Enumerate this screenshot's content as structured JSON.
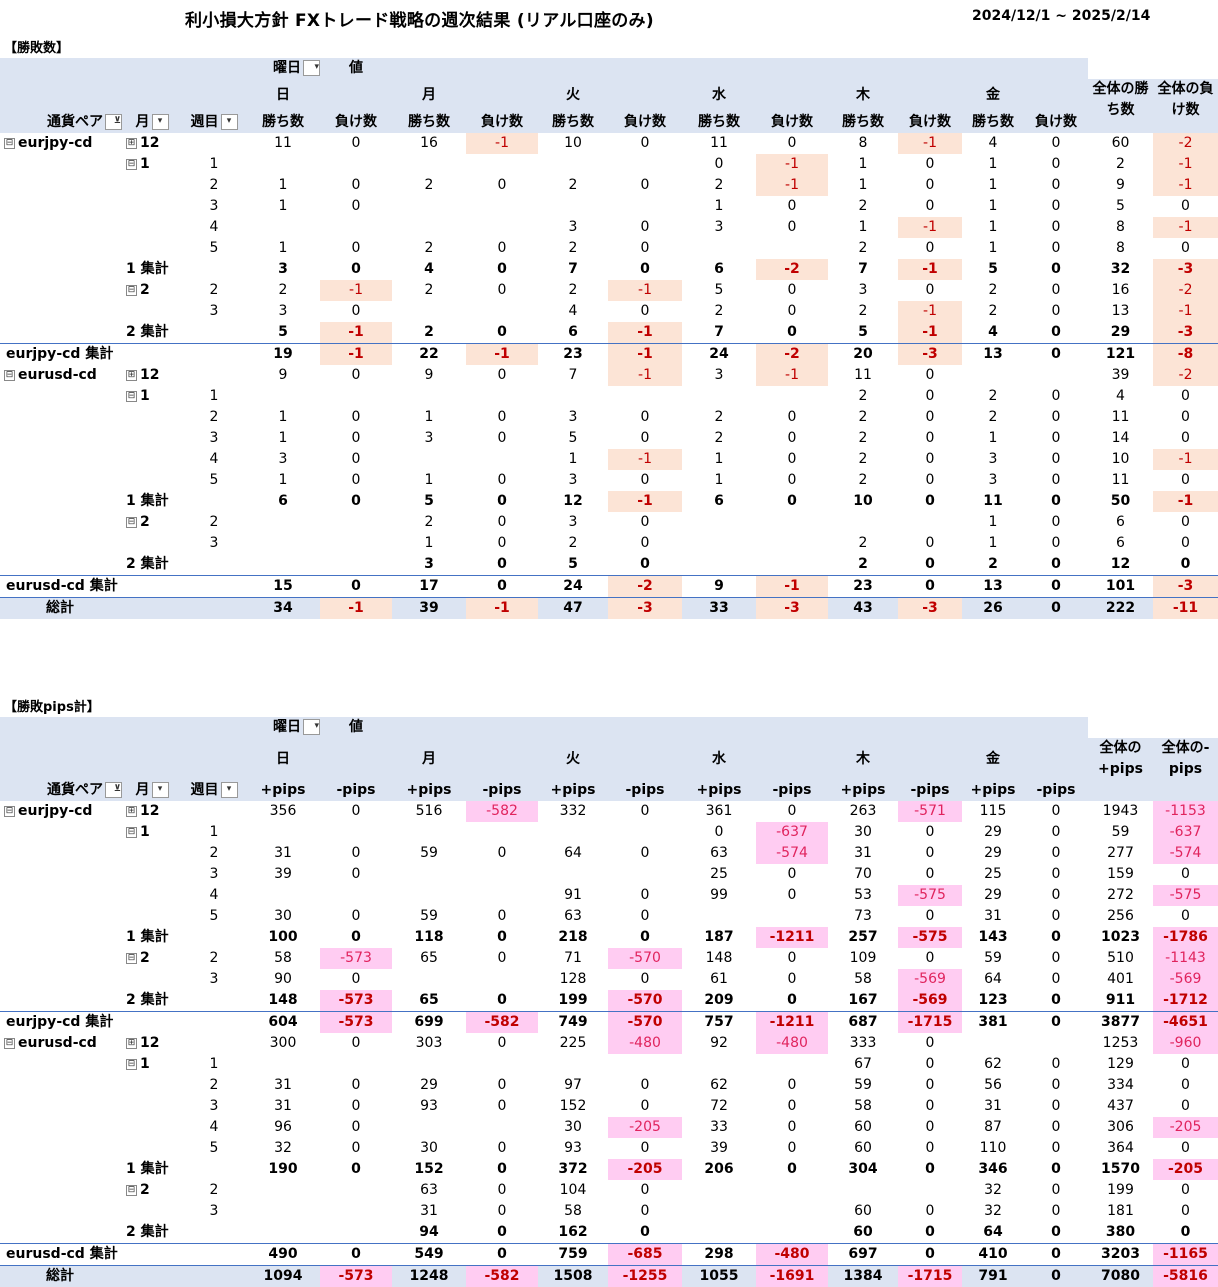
{
  "title": "利小損大方針 FXトレード戦略の週次結果 (リアル口座のみ)",
  "date_range": "2024/12/1 ~ 2025/2/14",
  "pivot_headers": {
    "weekday_field": "曜日",
    "value_label": "値",
    "currency_field": "通貨ペア",
    "month_field": "月",
    "week_field": "週目",
    "days": [
      "日",
      "月",
      "火",
      "水",
      "木",
      "金"
    ]
  },
  "tables": [
    {
      "section_label": "【勝敗数】",
      "col_pos": "勝ち数",
      "col_neg": "負け数",
      "total_pos": "全体の勝ち数",
      "total_neg": "全体の負け数",
      "rows": [
        {
          "type": "data",
          "c0": "eurjpy-cd",
          "c1": "12",
          "e0": "⊟",
          "e1": "⊞",
          "c2": "",
          "v": [
            "11",
            "0",
            "16",
            "-1",
            "10",
            "0",
            "11",
            "0",
            "8",
            "-1",
            "4",
            "0",
            "60",
            "-2"
          ]
        },
        {
          "type": "data",
          "c0": "",
          "c1": "1",
          "e1": "⊟",
          "c2": "1",
          "v": [
            "",
            "",
            "",
            "",
            "",
            "",
            "0",
            "-1",
            "1",
            "0",
            "1",
            "0",
            "2",
            "-1"
          ]
        },
        {
          "type": "data",
          "c0": "",
          "c1": "",
          "c2": "2",
          "v": [
            "1",
            "0",
            "2",
            "0",
            "2",
            "0",
            "2",
            "-1",
            "1",
            "0",
            "1",
            "0",
            "9",
            "-1"
          ]
        },
        {
          "type": "data",
          "c0": "",
          "c1": "",
          "c2": "3",
          "v": [
            "1",
            "0",
            "",
            "",
            "",
            "",
            "1",
            "0",
            "2",
            "0",
            "1",
            "0",
            "5",
            "0"
          ]
        },
        {
          "type": "data",
          "c0": "",
          "c1": "",
          "c2": "4",
          "v": [
            "",
            "",
            "",
            "",
            "3",
            "0",
            "3",
            "0",
            "1",
            "-1",
            "1",
            "0",
            "8",
            "-1"
          ]
        },
        {
          "type": "data",
          "c0": "",
          "c1": "",
          "c2": "5",
          "v": [
            "1",
            "0",
            "2",
            "0",
            "2",
            "0",
            "",
            "",
            "2",
            "0",
            "1",
            "0",
            "8",
            "0"
          ]
        },
        {
          "type": "sub",
          "c1": "1 集計",
          "v": [
            "3",
            "0",
            "4",
            "0",
            "7",
            "0",
            "6",
            "-2",
            "7",
            "-1",
            "5",
            "0",
            "32",
            "-3"
          ]
        },
        {
          "type": "data",
          "c0": "",
          "c1": "2",
          "e1": "⊟",
          "c2": "2",
          "v": [
            "2",
            "-1",
            "2",
            "0",
            "2",
            "-1",
            "5",
            "0",
            "3",
            "0",
            "2",
            "0",
            "16",
            "-2"
          ]
        },
        {
          "type": "data",
          "c0": "",
          "c1": "",
          "c2": "3",
          "v": [
            "3",
            "0",
            "",
            "",
            "4",
            "0",
            "2",
            "0",
            "2",
            "-1",
            "2",
            "0",
            "13",
            "-1"
          ]
        },
        {
          "type": "sub",
          "c1": "2 集計",
          "v": [
            "5",
            "-1",
            "2",
            "0",
            "6",
            "-1",
            "7",
            "0",
            "5",
            "-1",
            "4",
            "0",
            "29",
            "-3"
          ]
        },
        {
          "type": "tot",
          "c0": "eurjpy-cd 集計",
          "v": [
            "19",
            "-1",
            "22",
            "-1",
            "23",
            "-1",
            "24",
            "-2",
            "20",
            "-3",
            "13",
            "0",
            "121",
            "-8"
          ]
        },
        {
          "type": "data",
          "c0": "eurusd-cd",
          "c1": "12",
          "e0": "⊟",
          "e1": "⊞",
          "c2": "",
          "v": [
            "9",
            "0",
            "9",
            "0",
            "7",
            "-1",
            "3",
            "-1",
            "11",
            "0",
            "",
            "",
            "39",
            "-2"
          ]
        },
        {
          "type": "data",
          "c0": "",
          "c1": "1",
          "e1": "⊟",
          "c2": "1",
          "v": [
            "",
            "",
            "",
            "",
            "",
            "",
            "",
            "",
            "2",
            "0",
            "2",
            "0",
            "4",
            "0"
          ]
        },
        {
          "type": "data",
          "c0": "",
          "c1": "",
          "c2": "2",
          "v": [
            "1",
            "0",
            "1",
            "0",
            "3",
            "0",
            "2",
            "0",
            "2",
            "0",
            "2",
            "0",
            "11",
            "0"
          ]
        },
        {
          "type": "data",
          "c0": "",
          "c1": "",
          "c2": "3",
          "v": [
            "1",
            "0",
            "3",
            "0",
            "5",
            "0",
            "2",
            "0",
            "2",
            "0",
            "1",
            "0",
            "14",
            "0"
          ]
        },
        {
          "type": "data",
          "c0": "",
          "c1": "",
          "c2": "4",
          "v": [
            "3",
            "0",
            "",
            "",
            "1",
            "-1",
            "1",
            "0",
            "2",
            "0",
            "3",
            "0",
            "10",
            "-1"
          ]
        },
        {
          "type": "data",
          "c0": "",
          "c1": "",
          "c2": "5",
          "v": [
            "1",
            "0",
            "1",
            "0",
            "3",
            "0",
            "1",
            "0",
            "2",
            "0",
            "3",
            "0",
            "11",
            "0"
          ]
        },
        {
          "type": "sub",
          "c1": "1 集計",
          "v": [
            "6",
            "0",
            "5",
            "0",
            "12",
            "-1",
            "6",
            "0",
            "10",
            "0",
            "11",
            "0",
            "50",
            "-1"
          ]
        },
        {
          "type": "data",
          "c0": "",
          "c1": "2",
          "e1": "⊟",
          "c2": "2",
          "v": [
            "",
            "",
            "2",
            "0",
            "3",
            "0",
            "",
            "",
            "",
            "",
            "1",
            "0",
            "6",
            "0"
          ]
        },
        {
          "type": "data",
          "c0": "",
          "c1": "",
          "c2": "3",
          "v": [
            "",
            "",
            "1",
            "0",
            "2",
            "0",
            "",
            "",
            "2",
            "0",
            "1",
            "0",
            "6",
            "0"
          ]
        },
        {
          "type": "sub",
          "c1": "2 集計",
          "v": [
            "",
            "",
            "3",
            "0",
            "5",
            "0",
            "",
            "",
            "2",
            "0",
            "2",
            "0",
            "12",
            "0"
          ]
        },
        {
          "type": "tot",
          "c0": "eurusd-cd 集計",
          "v": [
            "15",
            "0",
            "17",
            "0",
            "24",
            "-2",
            "9",
            "-1",
            "23",
            "0",
            "13",
            "0",
            "101",
            "-3"
          ]
        },
        {
          "type": "grand",
          "c0": "総計",
          "v": [
            "34",
            "-1",
            "39",
            "-1",
            "47",
            "-3",
            "33",
            "-3",
            "43",
            "-3",
            "26",
            "0",
            "222",
            "-11"
          ]
        }
      ]
    },
    {
      "section_label": "【勝敗pips計】",
      "col_pos": "+pips",
      "col_neg": "-pips",
      "total_pos": "全体の+pips",
      "total_neg": "全体の-pips",
      "rows": [
        {
          "type": "data",
          "c0": "eurjpy-cd",
          "c1": "12",
          "e0": "⊟",
          "e1": "⊞",
          "c2": "",
          "v": [
            "356",
            "0",
            "516",
            "-582",
            "332",
            "0",
            "361",
            "0",
            "263",
            "-571",
            "115",
            "0",
            "1943",
            "-1153"
          ]
        },
        {
          "type": "data",
          "c0": "",
          "c1": "1",
          "e1": "⊟",
          "c2": "1",
          "v": [
            "",
            "",
            "",
            "",
            "",
            "",
            "0",
            "-637",
            "30",
            "0",
            "29",
            "0",
            "59",
            "-637"
          ]
        },
        {
          "type": "data",
          "c0": "",
          "c1": "",
          "c2": "2",
          "v": [
            "31",
            "0",
            "59",
            "0",
            "64",
            "0",
            "63",
            "-574",
            "31",
            "0",
            "29",
            "0",
            "277",
            "-574"
          ]
        },
        {
          "type": "data",
          "c0": "",
          "c1": "",
          "c2": "3",
          "v": [
            "39",
            "0",
            "",
            "",
            "",
            "",
            "25",
            "0",
            "70",
            "0",
            "25",
            "0",
            "159",
            "0"
          ]
        },
        {
          "type": "data",
          "c0": "",
          "c1": "",
          "c2": "4",
          "v": [
            "",
            "",
            "",
            "",
            "91",
            "0",
            "99",
            "0",
            "53",
            "-575",
            "29",
            "0",
            "272",
            "-575"
          ]
        },
        {
          "type": "data",
          "c0": "",
          "c1": "",
          "c2": "5",
          "v": [
            "30",
            "0",
            "59",
            "0",
            "63",
            "0",
            "",
            "",
            "73",
            "0",
            "31",
            "0",
            "256",
            "0"
          ]
        },
        {
          "type": "sub",
          "c1": "1 集計",
          "v": [
            "100",
            "0",
            "118",
            "0",
            "218",
            "0",
            "187",
            "-1211",
            "257",
            "-575",
            "143",
            "0",
            "1023",
            "-1786"
          ]
        },
        {
          "type": "data",
          "c0": "",
          "c1": "2",
          "e1": "⊟",
          "c2": "2",
          "v": [
            "58",
            "-573",
            "65",
            "0",
            "71",
            "-570",
            "148",
            "0",
            "109",
            "0",
            "59",
            "0",
            "510",
            "-1143"
          ]
        },
        {
          "type": "data",
          "c0": "",
          "c1": "",
          "c2": "3",
          "v": [
            "90",
            "0",
            "",
            "",
            "128",
            "0",
            "61",
            "0",
            "58",
            "-569",
            "64",
            "0",
            "401",
            "-569"
          ]
        },
        {
          "type": "sub",
          "c1": "2 集計",
          "v": [
            "148",
            "-573",
            "65",
            "0",
            "199",
            "-570",
            "209",
            "0",
            "167",
            "-569",
            "123",
            "0",
            "911",
            "-1712"
          ]
        },
        {
          "type": "tot",
          "c0": "eurjpy-cd 集計",
          "v": [
            "604",
            "-573",
            "699",
            "-582",
            "749",
            "-570",
            "757",
            "-1211",
            "687",
            "-1715",
            "381",
            "0",
            "3877",
            "-4651"
          ]
        },
        {
          "type": "data",
          "c0": "eurusd-cd",
          "c1": "12",
          "e0": "⊟",
          "e1": "⊞",
          "c2": "",
          "v": [
            "300",
            "0",
            "303",
            "0",
            "225",
            "-480",
            "92",
            "-480",
            "333",
            "0",
            "",
            "",
            "1253",
            "-960"
          ]
        },
        {
          "type": "data",
          "c0": "",
          "c1": "1",
          "e1": "⊟",
          "c2": "1",
          "v": [
            "",
            "",
            "",
            "",
            "",
            "",
            "",
            "",
            "67",
            "0",
            "62",
            "0",
            "129",
            "0"
          ]
        },
        {
          "type": "data",
          "c0": "",
          "c1": "",
          "c2": "2",
          "v": [
            "31",
            "0",
            "29",
            "0",
            "97",
            "0",
            "62",
            "0",
            "59",
            "0",
            "56",
            "0",
            "334",
            "0"
          ]
        },
        {
          "type": "data",
          "c0": "",
          "c1": "",
          "c2": "3",
          "v": [
            "31",
            "0",
            "93",
            "0",
            "152",
            "0",
            "72",
            "0",
            "58",
            "0",
            "31",
            "0",
            "437",
            "0"
          ]
        },
        {
          "type": "data",
          "c0": "",
          "c1": "",
          "c2": "4",
          "v": [
            "96",
            "0",
            "",
            "",
            "30",
            "-205",
            "33",
            "0",
            "60",
            "0",
            "87",
            "0",
            "306",
            "-205"
          ]
        },
        {
          "type": "data",
          "c0": "",
          "c1": "",
          "c2": "5",
          "v": [
            "32",
            "0",
            "30",
            "0",
            "93",
            "0",
            "39",
            "0",
            "60",
            "0",
            "110",
            "0",
            "364",
            "0"
          ]
        },
        {
          "type": "sub",
          "c1": "1 集計",
          "v": [
            "190",
            "0",
            "152",
            "0",
            "372",
            "-205",
            "206",
            "0",
            "304",
            "0",
            "346",
            "0",
            "1570",
            "-205"
          ]
        },
        {
          "type": "data",
          "c0": "",
          "c1": "2",
          "e1": "⊟",
          "c2": "2",
          "v": [
            "",
            "",
            "63",
            "0",
            "104",
            "0",
            "",
            "",
            "",
            "",
            "32",
            "0",
            "199",
            "0"
          ]
        },
        {
          "type": "data",
          "c0": "",
          "c1": "",
          "c2": "3",
          "v": [
            "",
            "",
            "31",
            "0",
            "58",
            "0",
            "",
            "",
            "60",
            "0",
            "32",
            "0",
            "181",
            "0"
          ]
        },
        {
          "type": "sub",
          "c1": "2 集計",
          "v": [
            "",
            "",
            "94",
            "0",
            "162",
            "0",
            "",
            "",
            "60",
            "0",
            "64",
            "0",
            "380",
            "0"
          ]
        },
        {
          "type": "tot",
          "c0": "eurusd-cd 集計",
          "v": [
            "490",
            "0",
            "549",
            "0",
            "759",
            "-685",
            "298",
            "-480",
            "697",
            "0",
            "410",
            "0",
            "3203",
            "-1165"
          ]
        },
        {
          "type": "grand",
          "c0": "総計",
          "v": [
            "1094",
            "-573",
            "1248",
            "-582",
            "1508",
            "-1255",
            "1055",
            "-1691",
            "1384",
            "-1715",
            "791",
            "0",
            "7080",
            "-5816"
          ]
        }
      ]
    }
  ]
}
